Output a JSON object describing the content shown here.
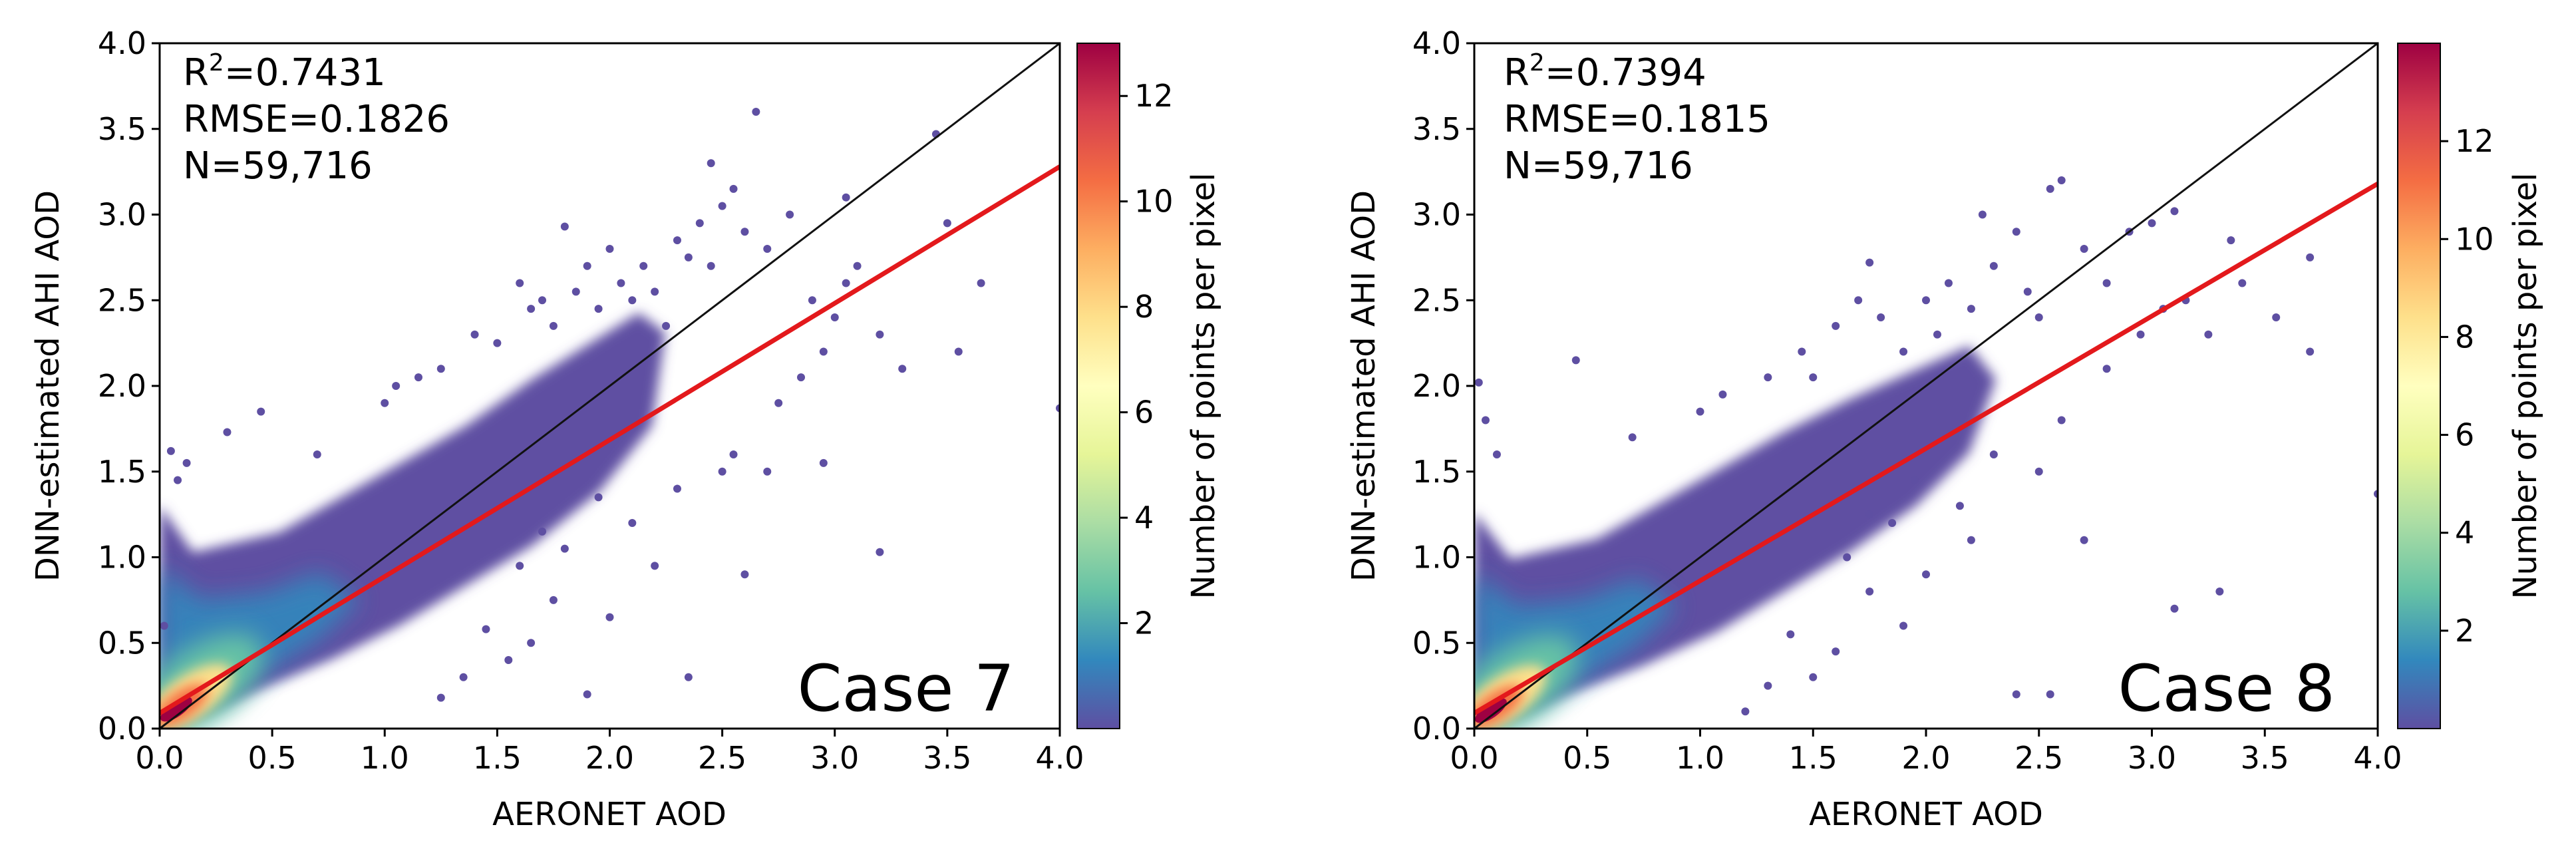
{
  "chart_data": [
    {
      "type": "scatter",
      "subtype": "density-scatter",
      "panel_label": "Case 7",
      "xlabel": "AERONET AOD",
      "ylabel": "DNN-estimated AHI AOD",
      "xlim": [
        0.0,
        4.0
      ],
      "ylim": [
        0.0,
        4.0
      ],
      "xticks": [
        "0.0",
        "0.5",
        "1.0",
        "1.5",
        "2.0",
        "2.5",
        "3.0",
        "3.5",
        "4.0"
      ],
      "yticks": [
        "0.0",
        "0.5",
        "1.0",
        "1.5",
        "2.0",
        "2.5",
        "3.0",
        "3.5",
        "4.0"
      ],
      "stats": {
        "r2_prefix": "R",
        "r2_sup": "2",
        "r2_value": "=0.7431",
        "rmse": "RMSE=0.1826",
        "n": "N=59,716"
      },
      "one_to_one_line": {
        "x": [
          0,
          4
        ],
        "y": [
          0,
          4
        ]
      },
      "regression_line": {
        "x": [
          0,
          4
        ],
        "y": [
          0.09,
          3.28
        ]
      },
      "colorbar": {
        "label": "Number of points per pixel",
        "ticks": [
          2,
          4,
          6,
          8,
          10,
          12
        ],
        "range": [
          0,
          13
        ]
      },
      "outlier_points": [
        [
          0.05,
          1.62
        ],
        [
          0.08,
          1.45
        ],
        [
          0.12,
          1.55
        ],
        [
          0.3,
          1.73
        ],
        [
          0.45,
          1.85
        ],
        [
          0.02,
          0.6
        ],
        [
          0.7,
          1.6
        ],
        [
          1.0,
          1.9
        ],
        [
          1.05,
          2.0
        ],
        [
          1.15,
          2.05
        ],
        [
          1.25,
          2.1
        ],
        [
          1.4,
          2.3
        ],
        [
          1.5,
          2.25
        ],
        [
          1.6,
          2.6
        ],
        [
          1.65,
          2.45
        ],
        [
          1.7,
          2.5
        ],
        [
          1.75,
          2.35
        ],
        [
          1.8,
          2.93
        ],
        [
          1.85,
          2.55
        ],
        [
          1.9,
          2.7
        ],
        [
          1.95,
          2.45
        ],
        [
          2.0,
          2.8
        ],
        [
          2.05,
          2.6
        ],
        [
          2.1,
          2.5
        ],
        [
          2.15,
          2.7
        ],
        [
          2.2,
          2.55
        ],
        [
          2.25,
          2.35
        ],
        [
          2.3,
          2.85
        ],
        [
          2.35,
          2.75
        ],
        [
          2.4,
          2.95
        ],
        [
          2.45,
          2.7
        ],
        [
          2.5,
          3.05
        ],
        [
          2.55,
          3.15
        ],
        [
          2.6,
          2.9
        ],
        [
          2.65,
          3.6
        ],
        [
          2.7,
          2.8
        ],
        [
          2.45,
          3.3
        ],
        [
          2.8,
          3.0
        ],
        [
          2.9,
          2.5
        ],
        [
          3.0,
          2.4
        ],
        [
          3.05,
          3.1
        ],
        [
          3.1,
          2.7
        ],
        [
          3.2,
          2.3
        ],
        [
          3.3,
          2.1
        ],
        [
          3.45,
          3.47
        ],
        [
          3.5,
          2.95
        ],
        [
          3.65,
          2.6
        ],
        [
          3.55,
          2.2
        ],
        [
          4.0,
          1.87
        ],
        [
          3.2,
          1.03
        ],
        [
          2.95,
          1.55
        ],
        [
          2.7,
          1.5
        ],
        [
          2.55,
          1.6
        ],
        [
          2.6,
          0.9
        ],
        [
          2.35,
          0.3
        ],
        [
          2.2,
          0.95
        ],
        [
          2.0,
          0.65
        ],
        [
          1.9,
          0.2
        ],
        [
          1.75,
          0.75
        ],
        [
          1.65,
          0.5
        ],
        [
          1.55,
          0.4
        ],
        [
          1.45,
          0.58
        ],
        [
          1.35,
          0.3
        ],
        [
          1.25,
          0.18
        ],
        [
          1.6,
          0.95
        ],
        [
          1.8,
          1.05
        ],
        [
          2.1,
          1.2
        ],
        [
          2.3,
          1.4
        ],
        [
          2.5,
          1.5
        ],
        [
          2.75,
          1.9
        ],
        [
          2.85,
          2.05
        ],
        [
          2.95,
          2.2
        ],
        [
          3.05,
          2.6
        ],
        [
          1.95,
          1.35
        ],
        [
          1.7,
          1.15
        ]
      ]
    },
    {
      "type": "scatter",
      "subtype": "density-scatter",
      "panel_label": "Case 8",
      "xlabel": "AERONET AOD",
      "ylabel": "DNN-estimated AHI AOD",
      "xlim": [
        0.0,
        4.0
      ],
      "ylim": [
        0.0,
        4.0
      ],
      "xticks": [
        "0.0",
        "0.5",
        "1.0",
        "1.5",
        "2.0",
        "2.5",
        "3.0",
        "3.5",
        "4.0"
      ],
      "yticks": [
        "0.0",
        "0.5",
        "1.0",
        "1.5",
        "2.0",
        "2.5",
        "3.0",
        "3.5",
        "4.0"
      ],
      "stats": {
        "r2_prefix": "R",
        "r2_sup": "2",
        "r2_value": "=0.7394",
        "rmse": "RMSE=0.1815",
        "n": "N=59,716"
      },
      "one_to_one_line": {
        "x": [
          0,
          4
        ],
        "y": [
          0,
          4
        ]
      },
      "regression_line": {
        "x": [
          0,
          4
        ],
        "y": [
          0.09,
          3.18
        ]
      },
      "colorbar": {
        "label": "Number of points per pixel",
        "ticks": [
          2,
          4,
          6,
          8,
          10,
          12
        ],
        "range": [
          0,
          14
        ]
      },
      "outlier_points": [
        [
          0.02,
          2.02
        ],
        [
          0.05,
          1.8
        ],
        [
          0.1,
          1.6
        ],
        [
          0.45,
          2.15
        ],
        [
          0.7,
          1.7
        ],
        [
          1.0,
          1.85
        ],
        [
          1.1,
          1.95
        ],
        [
          1.3,
          2.05
        ],
        [
          1.45,
          2.2
        ],
        [
          1.5,
          2.05
        ],
        [
          1.6,
          2.35
        ],
        [
          1.7,
          2.5
        ],
        [
          1.75,
          2.72
        ],
        [
          1.8,
          2.4
        ],
        [
          1.9,
          2.2
        ],
        [
          2.0,
          2.5
        ],
        [
          2.05,
          2.3
        ],
        [
          2.1,
          2.6
        ],
        [
          2.2,
          2.45
        ],
        [
          2.25,
          3.0
        ],
        [
          2.3,
          2.7
        ],
        [
          2.4,
          2.9
        ],
        [
          2.45,
          2.55
        ],
        [
          2.5,
          2.4
        ],
        [
          2.55,
          3.15
        ],
        [
          2.6,
          3.2
        ],
        [
          2.7,
          2.8
        ],
        [
          2.8,
          2.6
        ],
        [
          2.9,
          2.9
        ],
        [
          3.0,
          2.95
        ],
        [
          3.1,
          3.02
        ],
        [
          3.15,
          2.5
        ],
        [
          3.25,
          2.3
        ],
        [
          3.35,
          2.85
        ],
        [
          3.4,
          2.6
        ],
        [
          3.55,
          2.4
        ],
        [
          3.7,
          2.2
        ],
        [
          3.7,
          2.75
        ],
        [
          4.0,
          1.37
        ],
        [
          3.3,
          0.8
        ],
        [
          3.1,
          0.7
        ],
        [
          2.7,
          1.1
        ],
        [
          2.5,
          1.5
        ],
        [
          2.4,
          0.2
        ],
        [
          2.55,
          0.2
        ],
        [
          2.2,
          1.1
        ],
        [
          2.0,
          0.9
        ],
        [
          1.9,
          0.6
        ],
        [
          1.75,
          0.8
        ],
        [
          1.6,
          0.45
        ],
        [
          1.5,
          0.3
        ],
        [
          1.4,
          0.55
        ],
        [
          1.3,
          0.25
        ],
        [
          1.2,
          0.1
        ],
        [
          1.65,
          1.0
        ],
        [
          1.85,
          1.2
        ],
        [
          2.15,
          1.3
        ],
        [
          2.3,
          1.6
        ],
        [
          2.6,
          1.8
        ],
        [
          2.8,
          2.1
        ],
        [
          2.95,
          2.3
        ],
        [
          3.05,
          2.45
        ],
        [
          1.95,
          1.45
        ],
        [
          1.75,
          1.25
        ]
      ]
    }
  ]
}
